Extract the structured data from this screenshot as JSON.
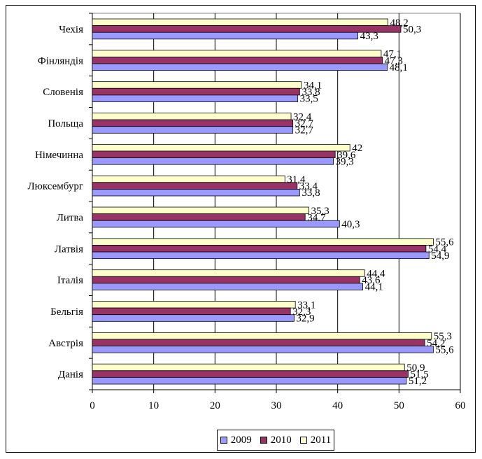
{
  "chart_data": {
    "type": "bar",
    "orientation": "horizontal",
    "categories": [
      "Чехія",
      "Фінляндія",
      "Словенія",
      "Польща",
      "Німечинна",
      "Люксембург",
      "Литва",
      "Латвія",
      "Італія",
      "Бельгія",
      "Австрія",
      "Данія"
    ],
    "series": [
      {
        "name": "2009",
        "color": "#9999ff",
        "values": [
          43.3,
          48.1,
          33.5,
          32.7,
          39.3,
          33.8,
          40.3,
          54.9,
          44.1,
          32.9,
          55.6,
          51.2
        ],
        "labels": [
          "43,3",
          "48,1",
          "33,5",
          "32,7",
          "39,3",
          "33,8",
          "40,3",
          "54,9",
          "44,1",
          "32,9",
          "55,6",
          "51,2"
        ]
      },
      {
        "name": "2010",
        "color": "#993366",
        "values": [
          50.3,
          47.3,
          33.8,
          32.7,
          39.6,
          33.4,
          34.7,
          54.4,
          43.6,
          32.3,
          54.2,
          51.5
        ],
        "labels": [
          "50,3",
          "47,3",
          "33,8",
          "32,7",
          "39,6",
          "33,4",
          "34,7",
          "54,4",
          "43,6",
          "32,3",
          "54,2",
          "51,5"
        ]
      },
      {
        "name": "2011",
        "color": "#ffffcc",
        "values": [
          48.2,
          47.1,
          34.1,
          32.4,
          42,
          31.4,
          35.3,
          55.6,
          44.4,
          33.1,
          55.3,
          50.9
        ],
        "labels": [
          "48,2",
          "47,1",
          "34,1",
          "32,4",
          "42",
          "31,4",
          "35,3",
          "55,6",
          "44,4",
          "33,1",
          "55,3",
          "50,9"
        ]
      }
    ],
    "xlim": [
      0,
      60
    ],
    "xticks": [
      "0",
      "10",
      "20",
      "30",
      "40",
      "50",
      "60"
    ],
    "grid": "vertical",
    "legend_position": "bottom"
  }
}
